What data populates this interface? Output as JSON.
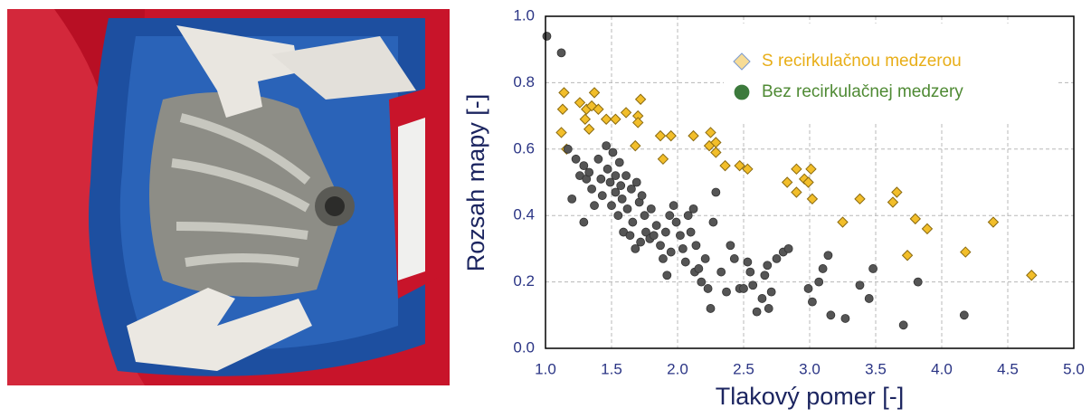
{
  "chart_data": {
    "type": "scatter",
    "x_label": "Tlakový pomer [-]",
    "y_label": "Rozsah mapy [-]",
    "xlim": [
      1,
      5
    ],
    "ylim": [
      0,
      1
    ],
    "xticks": [
      {
        "value": 1,
        "label": "1.0"
      },
      1.5,
      {
        "value": 2,
        "label": "2.0"
      },
      2.5,
      {
        "value": 3,
        "label": "3.0"
      },
      3.5,
      {
        "value": 4,
        "label": "4.0"
      },
      4.5,
      {
        "value": 5,
        "label": "5.0"
      }
    ],
    "yticks": [
      {
        "value": 0,
        "label": "0.0"
      },
      0.2,
      0.4,
      0.6,
      0.8,
      {
        "value": 1,
        "label": "1.0"
      }
    ],
    "grid": true,
    "legend_position": "upper right",
    "series": [
      {
        "name": "S recirkulačnou medzerou",
        "marker": "diamond",
        "color": "#f2be2a",
        "legend_color": "#f7dc96",
        "label_color": "#e8ae18",
        "x": [
          1.14,
          1.13,
          1.12,
          1.16,
          1.26,
          1.31,
          1.35,
          1.37,
          1.3,
          1.33,
          1.4,
          1.46,
          1.53,
          1.61,
          1.72,
          1.7,
          1.7,
          1.68,
          1.87,
          1.95,
          1.89,
          2.12,
          2.25,
          2.24,
          2.29,
          2.29,
          2.36,
          2.47,
          2.53,
          2.83,
          2.9,
          2.96,
          3.01,
          2.9,
          2.99,
          3.02,
          3.25,
          3.38,
          3.66,
          3.63,
          3.8,
          3.89,
          3.74,
          4.18,
          4.39,
          4.68
        ],
        "values": [
          0.77,
          0.72,
          0.65,
          0.6,
          0.74,
          0.72,
          0.73,
          0.77,
          0.69,
          0.66,
          0.72,
          0.69,
          0.69,
          0.71,
          0.75,
          0.7,
          0.68,
          0.61,
          0.64,
          0.64,
          0.57,
          0.64,
          0.65,
          0.61,
          0.62,
          0.59,
          0.55,
          0.55,
          0.54,
          0.5,
          0.54,
          0.51,
          0.54,
          0.47,
          0.5,
          0.45,
          0.38,
          0.45,
          0.47,
          0.44,
          0.39,
          0.36,
          0.28,
          0.29,
          0.38,
          0.22
        ]
      },
      {
        "name": "Bez recirkulačnej medzery",
        "marker": "circle",
        "color": "#555555",
        "legend_color": "#3c7a3c",
        "label_color": "#4f8a34",
        "x": [
          1.01,
          1.12,
          1.17,
          1.2,
          1.23,
          1.26,
          1.29,
          1.31,
          1.29,
          1.33,
          1.35,
          1.37,
          1.4,
          1.42,
          1.43,
          1.46,
          1.47,
          1.49,
          1.5,
          1.51,
          1.53,
          1.53,
          1.55,
          1.56,
          1.57,
          1.58,
          1.59,
          1.61,
          1.62,
          1.64,
          1.65,
          1.66,
          1.68,
          1.69,
          1.71,
          1.72,
          1.73,
          1.75,
          1.76,
          1.79,
          1.8,
          1.82,
          1.84,
          1.87,
          1.89,
          1.91,
          1.92,
          1.94,
          1.95,
          1.97,
          1.99,
          2.02,
          2.04,
          2.06,
          2.08,
          2.1,
          2.12,
          2.13,
          2.14,
          2.16,
          2.18,
          2.21,
          2.23,
          2.25,
          2.27,
          2.29,
          2.33,
          2.37,
          2.4,
          2.43,
          2.47,
          2.5,
          2.53,
          2.55,
          2.57,
          2.6,
          2.64,
          2.66,
          2.68,
          2.69,
          2.71,
          2.75,
          2.8,
          2.84,
          2.99,
          3.02,
          3.07,
          3.1,
          3.14,
          3.16,
          3.27,
          3.38,
          3.45,
          3.48,
          3.71,
          3.82,
          4.17
        ],
        "values": [
          0.94,
          0.89,
          0.6,
          0.45,
          0.57,
          0.52,
          0.55,
          0.51,
          0.38,
          0.53,
          0.48,
          0.43,
          0.57,
          0.51,
          0.46,
          0.61,
          0.54,
          0.5,
          0.43,
          0.59,
          0.52,
          0.47,
          0.4,
          0.56,
          0.49,
          0.45,
          0.35,
          0.52,
          0.42,
          0.34,
          0.48,
          0.38,
          0.3,
          0.5,
          0.44,
          0.32,
          0.46,
          0.4,
          0.35,
          0.33,
          0.42,
          0.34,
          0.37,
          0.31,
          0.27,
          0.35,
          0.22,
          0.4,
          0.29,
          0.43,
          0.38,
          0.34,
          0.3,
          0.26,
          0.4,
          0.35,
          0.42,
          0.23,
          0.31,
          0.24,
          0.2,
          0.27,
          0.18,
          0.12,
          0.38,
          0.47,
          0.23,
          0.17,
          0.31,
          0.27,
          0.18,
          0.18,
          0.26,
          0.23,
          0.19,
          0.11,
          0.15,
          0.22,
          0.25,
          0.12,
          0.17,
          0.27,
          0.29,
          0.3,
          0.18,
          0.14,
          0.2,
          0.24,
          0.28,
          0.1,
          0.09,
          0.19,
          0.15,
          0.24,
          0.07,
          0.2,
          0.1
        ]
      }
    ]
  }
}
